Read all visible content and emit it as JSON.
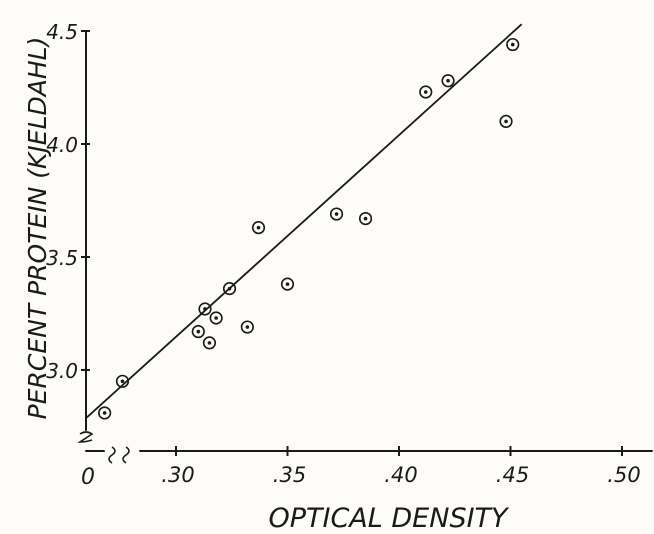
{
  "chart_data": {
    "type": "scatter",
    "xlabel": "OPTICAL DENSITY",
    "ylabel": "PERCENT PROTEIN (KJELDAHL)",
    "x_origin_label": "0",
    "xlim": [
      0.25,
      0.5
    ],
    "ylim": [
      2.7,
      4.5
    ],
    "x_ticks": [
      0.3,
      0.35,
      0.4,
      0.45,
      0.5
    ],
    "x_tick_labels": [
      ".30",
      ".35",
      ".40",
      ".45",
      ".50"
    ],
    "y_ticks": [
      3.0,
      3.5,
      4.0,
      4.5
    ],
    "y_tick_labels": [
      "3.0",
      "3.5",
      "4.0",
      "4.5"
    ],
    "grid": false,
    "legend": "none",
    "points": [
      {
        "x": 0.268,
        "y": 2.81
      },
      {
        "x": 0.276,
        "y": 2.95
      },
      {
        "x": 0.31,
        "y": 3.17
      },
      {
        "x": 0.313,
        "y": 3.27
      },
      {
        "x": 0.315,
        "y": 3.12
      },
      {
        "x": 0.318,
        "y": 3.23
      },
      {
        "x": 0.324,
        "y": 3.36
      },
      {
        "x": 0.332,
        "y": 3.19
      },
      {
        "x": 0.337,
        "y": 3.63
      },
      {
        "x": 0.35,
        "y": 3.38
      },
      {
        "x": 0.372,
        "y": 3.69
      },
      {
        "x": 0.385,
        "y": 3.67
      },
      {
        "x": 0.412,
        "y": 4.23
      },
      {
        "x": 0.422,
        "y": 4.28
      },
      {
        "x": 0.448,
        "y": 4.1
      },
      {
        "x": 0.451,
        "y": 4.44
      }
    ],
    "fit_line": {
      "x": [
        0.26,
        0.455
      ],
      "y": [
        2.79,
        4.53
      ]
    }
  }
}
